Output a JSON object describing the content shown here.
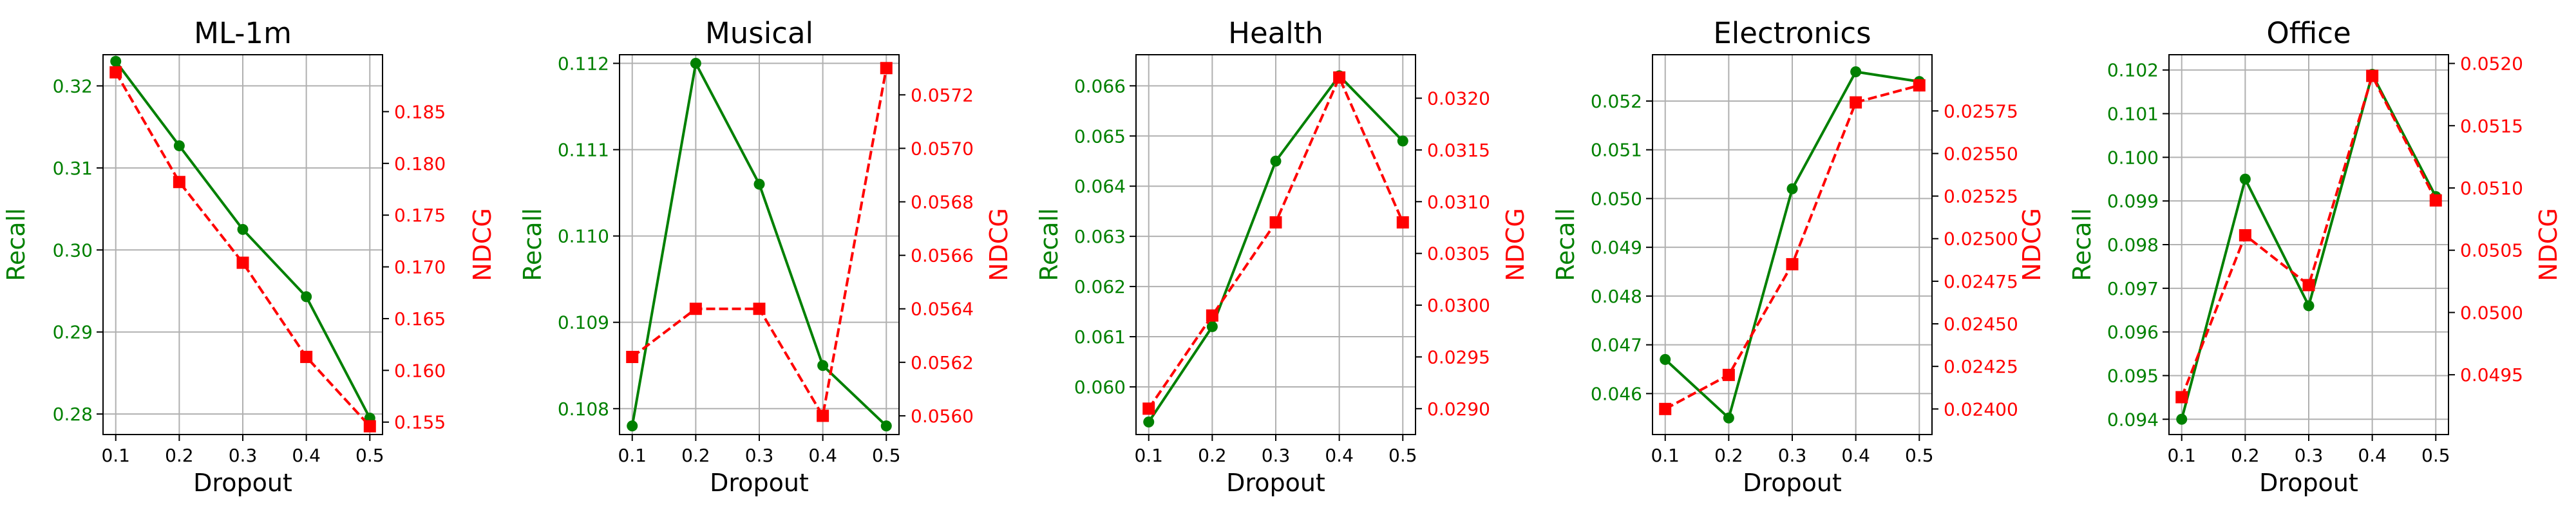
{
  "colors": {
    "recall": "#008000",
    "ndcg": "#ff0000",
    "grid": "#b0b0b0",
    "axis": "#000000"
  },
  "chart_data": [
    {
      "type": "line",
      "title": "ML-1m",
      "xlabel": "Dropout",
      "ylabel": "Recall",
      "y2label": "NDCG",
      "x": [
        0.1,
        0.2,
        0.3,
        0.4,
        0.5
      ],
      "xticks": [
        "0.1",
        "0.2",
        "0.3",
        "0.4",
        "0.5"
      ],
      "ylim": [
        0.2775,
        0.3238
      ],
      "yticks": [
        0.28,
        0.29,
        0.3,
        0.31,
        0.32
      ],
      "yticklabels": [
        "0.28",
        "0.29",
        "0.30",
        "0.31",
        "0.32"
      ],
      "y2lim": [
        0.1538,
        0.1905
      ],
      "y2ticks": [
        0.155,
        0.16,
        0.165,
        0.17,
        0.175,
        0.18,
        0.185
      ],
      "y2ticklabels": [
        "0.155",
        "0.160",
        "0.165",
        "0.170",
        "0.175",
        "0.180",
        "0.185"
      ],
      "grid": true,
      "series": [
        {
          "axis": "left",
          "color": "#008000",
          "style": "solid",
          "marker": "circle",
          "values": [
            0.323,
            0.3127,
            0.3025,
            0.2943,
            0.2795
          ]
        },
        {
          "axis": "right",
          "color": "#ff0000",
          "style": "dashed",
          "marker": "square",
          "values": [
            0.1888,
            0.1782,
            0.1704,
            0.1613,
            0.1546
          ]
        }
      ]
    },
    {
      "type": "line",
      "title": "Musical",
      "xlabel": "Dropout",
      "ylabel": "Recall",
      "y2label": "NDCG",
      "x": [
        0.1,
        0.2,
        0.3,
        0.4,
        0.5
      ],
      "xticks": [
        "0.1",
        "0.2",
        "0.3",
        "0.4",
        "0.5"
      ],
      "ylim": [
        0.1077,
        0.1121
      ],
      "yticks": [
        0.108,
        0.109,
        0.11,
        0.111,
        0.112
      ],
      "yticklabels": [
        "0.108",
        "0.109",
        "0.110",
        "0.111",
        "0.112"
      ],
      "y2lim": [
        0.05593,
        0.05735
      ],
      "y2ticks": [
        0.056,
        0.0562,
        0.0564,
        0.0566,
        0.0568,
        0.057,
        0.0572
      ],
      "y2ticklabels": [
        "0.0560",
        "0.0562",
        "0.0564",
        "0.0566",
        "0.0568",
        "0.0570",
        "0.0572"
      ],
      "grid": true,
      "series": [
        {
          "axis": "left",
          "color": "#008000",
          "style": "solid",
          "marker": "circle",
          "values": [
            0.1078,
            0.112,
            0.1106,
            0.1085,
            0.1078
          ]
        },
        {
          "axis": "right",
          "color": "#ff0000",
          "style": "dashed",
          "marker": "square",
          "values": [
            0.05622,
            0.0564,
            0.0564,
            0.056,
            0.0573
          ]
        }
      ]
    },
    {
      "type": "line",
      "title": "Health",
      "xlabel": "Dropout",
      "ylabel": "Recall",
      "y2label": "NDCG",
      "x": [
        0.1,
        0.2,
        0.3,
        0.4,
        0.5
      ],
      "xticks": [
        "0.1",
        "0.2",
        "0.3",
        "0.4",
        "0.5"
      ],
      "ylim": [
        0.05905,
        0.06662
      ],
      "yticks": [
        0.059,
        0.06,
        0.061,
        0.062,
        0.063,
        0.064,
        0.065,
        0.066
      ],
      "yticklabels": [
        "0.059",
        "0.060",
        "0.061",
        "0.062",
        "0.063",
        "0.064",
        "0.065",
        "0.066"
      ],
      "y2lim": [
        0.02875,
        0.03242
      ],
      "y2ticks": [
        0.029,
        0.0295,
        0.03,
        0.0305,
        0.031,
        0.0315,
        0.032
      ],
      "y2ticklabels": [
        "0.0290",
        "0.0295",
        "0.0300",
        "0.0305",
        "0.0310",
        "0.0315",
        "0.0320"
      ],
      "grid": true,
      "series": [
        {
          "axis": "left",
          "color": "#008000",
          "style": "solid",
          "marker": "circle",
          "values": [
            0.0593,
            0.0612,
            0.0645,
            0.0662,
            0.0649
          ]
        },
        {
          "axis": "right",
          "color": "#ff0000",
          "style": "dashed",
          "marker": "square",
          "values": [
            0.029,
            0.0299,
            0.0308,
            0.0322,
            0.0308
          ]
        }
      ]
    },
    {
      "type": "line",
      "title": "Electronics",
      "xlabel": "Dropout",
      "ylabel": "Recall",
      "y2label": "NDCG",
      "x": [
        0.1,
        0.2,
        0.3,
        0.4,
        0.5
      ],
      "xticks": [
        "0.1",
        "0.2",
        "0.3",
        "0.4",
        "0.5"
      ],
      "ylim": [
        0.04516,
        0.05295
      ],
      "yticks": [
        0.046,
        0.047,
        0.048,
        0.049,
        0.05,
        0.051,
        0.052
      ],
      "yticklabels": [
        "0.046",
        "0.047",
        "0.048",
        "0.049",
        "0.050",
        "0.051",
        "0.052"
      ],
      "y2lim": [
        0.02385,
        0.02608
      ],
      "y2ticks": [
        0.024,
        0.02425,
        0.0245,
        0.02475,
        0.025,
        0.02525,
        0.0255,
        0.02575
      ],
      "y2ticklabels": [
        "0.02400",
        "0.02425",
        "0.02450",
        "0.02475",
        "0.02500",
        "0.02525",
        "0.02550",
        "0.02575"
      ],
      "grid": true,
      "series": [
        {
          "axis": "left",
          "color": "#008000",
          "style": "solid",
          "marker": "circle",
          "values": [
            0.0467,
            0.0455,
            0.0502,
            0.0526,
            0.0524
          ]
        },
        {
          "axis": "right",
          "color": "#ff0000",
          "style": "dashed",
          "marker": "square",
          "values": [
            0.024,
            0.0242,
            0.02485,
            0.0258,
            0.0259
          ]
        }
      ]
    },
    {
      "type": "line",
      "title": "Office",
      "xlabel": "Dropout",
      "ylabel": "Recall",
      "y2label": "NDCG",
      "x": [
        0.1,
        0.2,
        0.3,
        0.4,
        0.5
      ],
      "xticks": [
        "0.1",
        "0.2",
        "0.3",
        "0.4",
        "0.5"
      ],
      "ylim": [
        0.09365,
        0.10235
      ],
      "yticks": [
        0.094,
        0.095,
        0.096,
        0.097,
        0.098,
        0.099,
        0.1,
        0.101,
        0.102
      ],
      "yticklabels": [
        "0.094",
        "0.095",
        "0.096",
        "0.097",
        "0.098",
        "0.099",
        "0.100",
        "0.101",
        "0.102"
      ],
      "y2lim": [
        0.04902,
        0.05207
      ],
      "y2ticks": [
        0.0495,
        0.05,
        0.0505,
        0.051,
        0.0515,
        0.052
      ],
      "y2ticklabels": [
        "0.0495",
        "0.0500",
        "0.0505",
        "0.0510",
        "0.0515",
        "0.0520"
      ],
      "grid": true,
      "series": [
        {
          "axis": "left",
          "color": "#008000",
          "style": "solid",
          "marker": "circle",
          "values": [
            0.094,
            0.0995,
            0.0966,
            0.1019,
            0.0991
          ]
        },
        {
          "axis": "right",
          "color": "#ff0000",
          "style": "dashed",
          "marker": "square",
          "values": [
            0.04932,
            0.05062,
            0.05022,
            0.0519,
            0.0509
          ]
        }
      ]
    }
  ]
}
